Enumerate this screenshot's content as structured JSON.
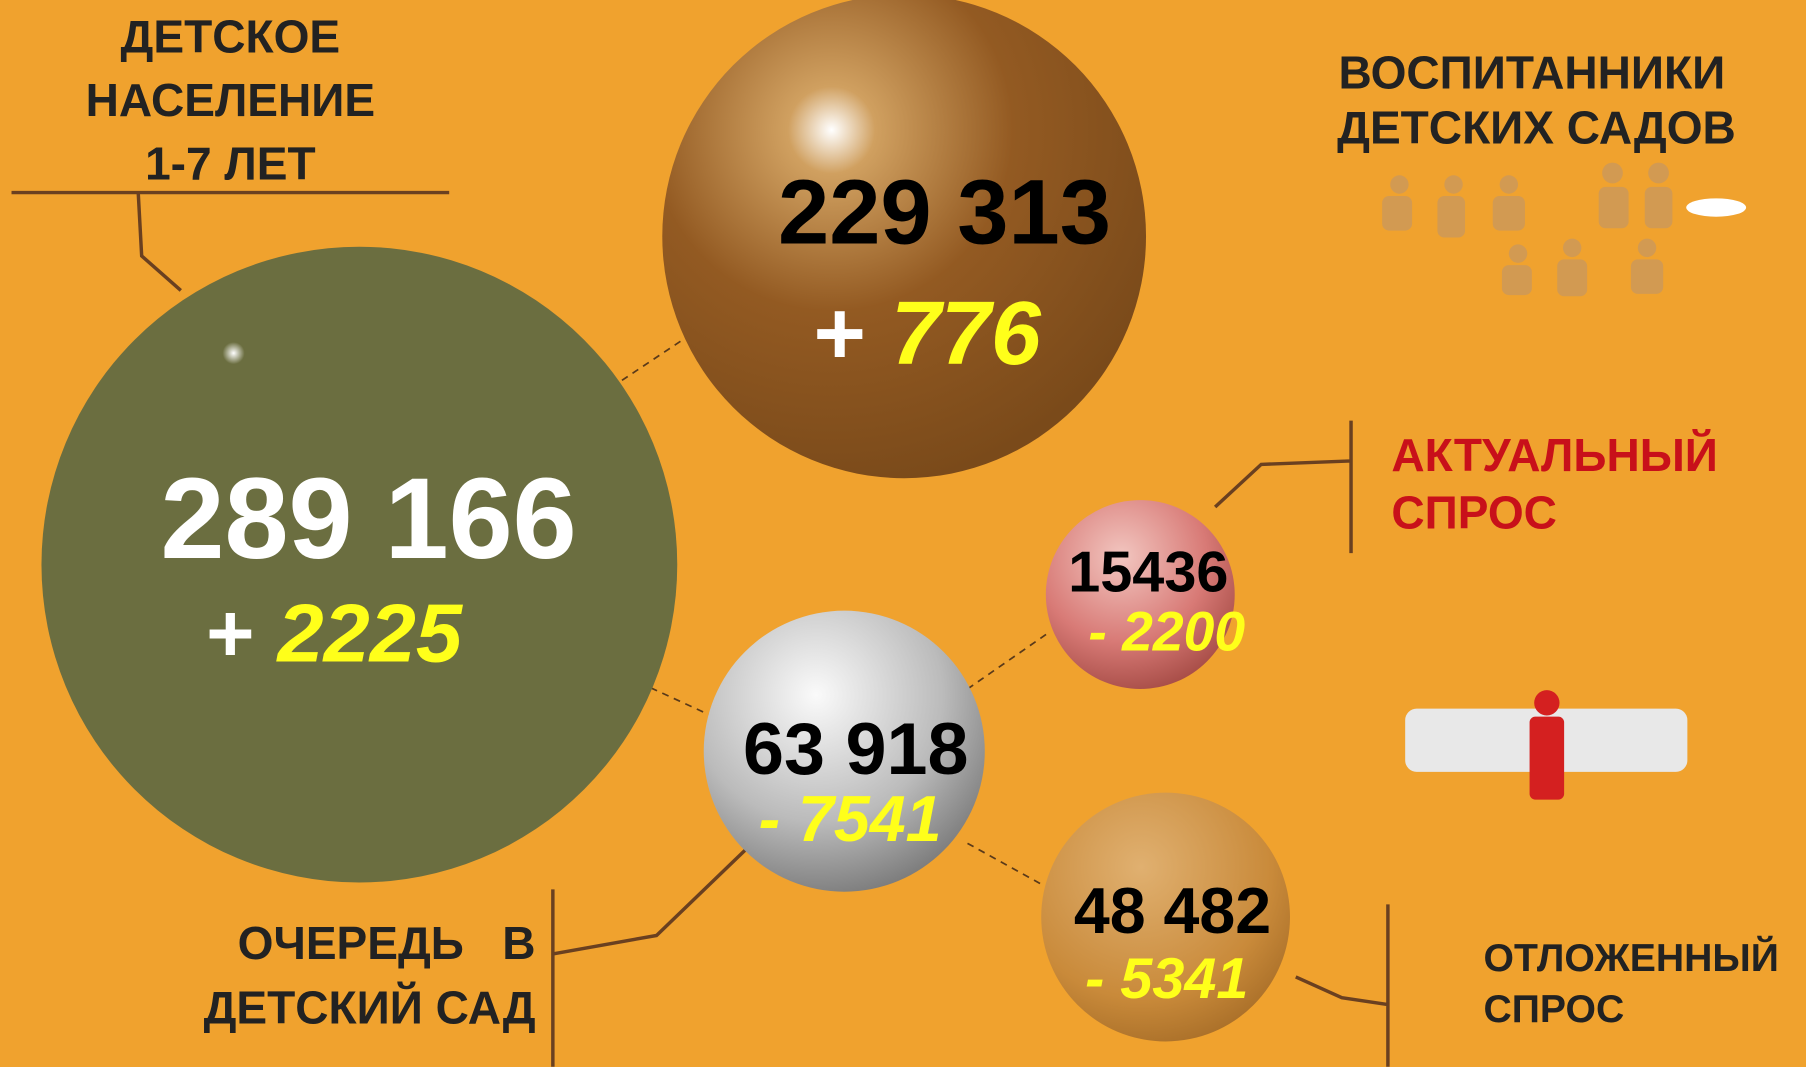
{
  "population": {
    "label_lines": [
      "ДЕТСКОЕ",
      "НАСЕЛЕНИЕ",
      "1-7 ЛЕТ"
    ],
    "value": "289 166",
    "sign": "+",
    "change": "2225"
  },
  "kindergarten": {
    "label_lines": [
      "ВОСПИТАННИКИ",
      "ДЕТСКИХ САДОВ"
    ],
    "value": "229 313",
    "sign": "+",
    "change": "776"
  },
  "queue": {
    "label_lines": [
      "ОЧЕРЕДЬ   В",
      "ДЕТСКИЙ САД"
    ],
    "value": "63 918",
    "change": "- 7541"
  },
  "actual_demand": {
    "label_lines": [
      "АКТУАЛЬНЫЙ",
      "СПРОС"
    ],
    "value": "15436",
    "change": "- 2200"
  },
  "deferred_demand": {
    "label_lines": [
      "ОТЛОЖЕННЫЙ",
      "СПРОС"
    ],
    "value": "48 482",
    "change": "- 5341"
  }
}
